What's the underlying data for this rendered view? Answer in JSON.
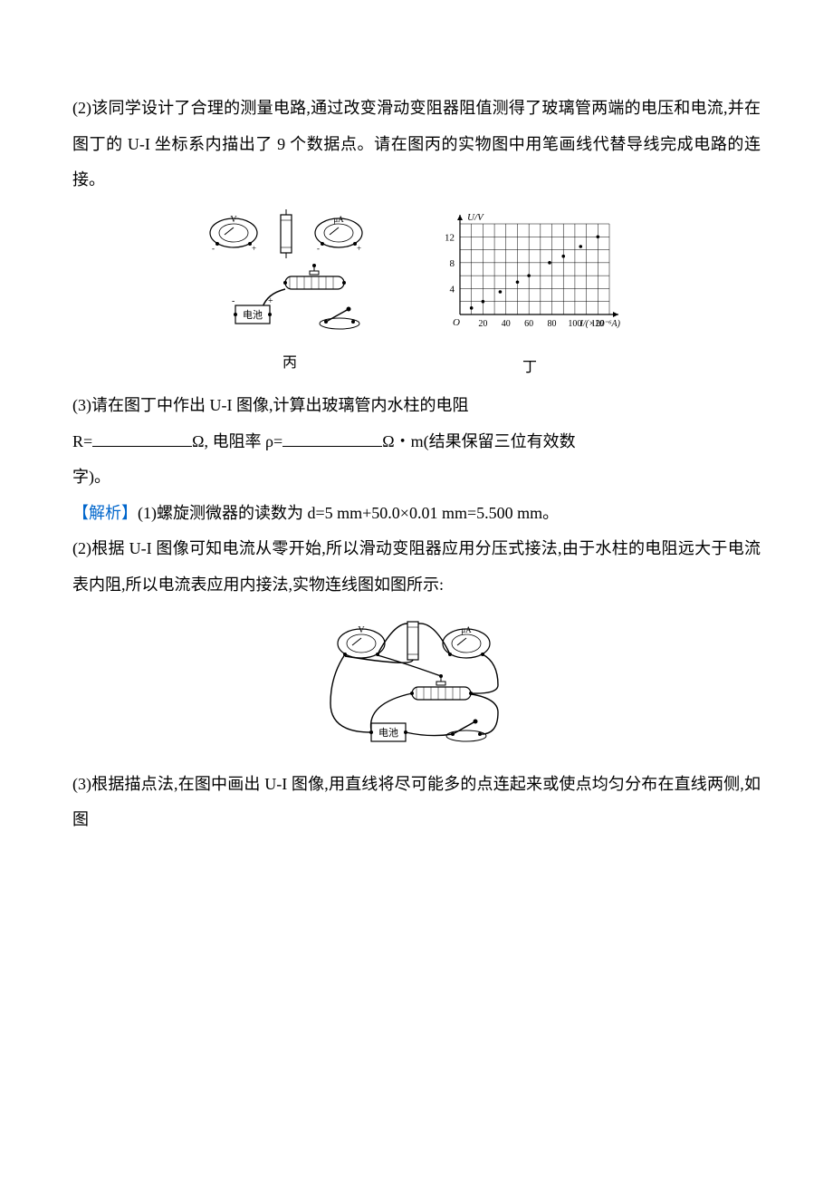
{
  "q2": {
    "text": "(2)该同学设计了合理的测量电路,通过改变滑动变阻器阻值测得了玻璃管两端的电压和电流,并在图丁的 U-I 坐标系内描出了 9 个数据点。请在图丙的实物图中用笔画线代替导线完成电路的连接。"
  },
  "circuit_fig": {
    "caption": "丙",
    "battery_label": "电池",
    "voltmeter": "V",
    "ammeter": "μA",
    "plus": "+",
    "minus": "-"
  },
  "graph_fig": {
    "caption": "丁",
    "y_label": "U/V",
    "x_label": "I/(×10⁻⁶A)",
    "origin": "O",
    "y_ticks": [
      4,
      8,
      12
    ],
    "y_tick_positions": [
      4,
      8,
      12
    ],
    "x_ticks": [
      20,
      40,
      60,
      80,
      100,
      120
    ],
    "x_tick_positions": [
      20,
      40,
      60,
      80,
      100,
      120
    ],
    "x_max": 130,
    "y_max": 14,
    "grid_color": "#000000",
    "bg_color": "#ffffff",
    "points": [
      {
        "x": 10,
        "y": 1.0
      },
      {
        "x": 20,
        "y": 2.0
      },
      {
        "x": 35,
        "y": 3.5
      },
      {
        "x": 50,
        "y": 5.0
      },
      {
        "x": 60,
        "y": 6.0
      },
      {
        "x": 78,
        "y": 8.0
      },
      {
        "x": 90,
        "y": 9.0
      },
      {
        "x": 105,
        "y": 10.5
      },
      {
        "x": 120,
        "y": 12.0
      }
    ]
  },
  "q3": {
    "prefix": "(3)请在图丁中作出 U-I 图像,计算出玻璃管内水柱的电阻",
    "r_label": "R=",
    "unit_ohm": "Ω,",
    "rho_label": " 电阻率 ρ=",
    "unit_ohmm": "Ω・m(结果保留三位有效数",
    "suffix": "字)。"
  },
  "solution": {
    "tag": "【解析】",
    "p1": "(1)螺旋测微器的读数为 d=5 mm+50.0×0.01 mm=5.500 mm。",
    "p2": "(2)根据 U-I 图像可知电流从零开始,所以滑动变阻器应用分压式接法,由于水柱的电阻远大于电流表内阻,所以电流表应用内接法,实物连线图如图所示:",
    "p3": "(3)根据描点法,在图中画出 U-I 图像,用直线将尽可能多的点连起来或使点均匀分布在直线两侧,如图"
  }
}
